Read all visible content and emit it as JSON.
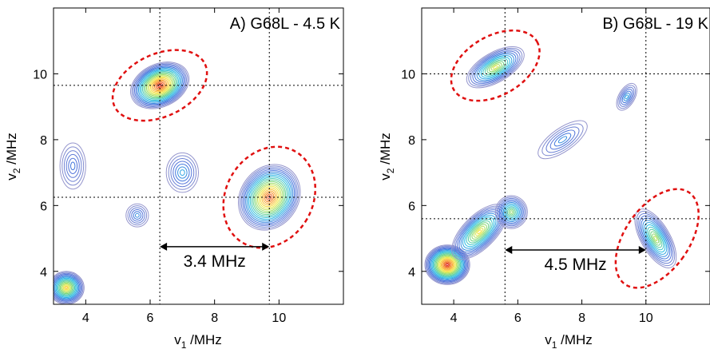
{
  "chart_data": [
    {
      "type": "contour",
      "title": "A) G68L - 4.5 K",
      "xlabel_base": "v",
      "xlabel_sub": "1",
      "xlabel_unit": " /MHz",
      "ylabel_base": "v",
      "ylabel_sub": "2",
      "ylabel_unit": " /MHz",
      "xlim": [
        3,
        12
      ],
      "ylim": [
        3,
        12
      ],
      "xticks": [
        4,
        6,
        8,
        10
      ],
      "yticks": [
        4,
        6,
        8,
        10
      ],
      "guide_x": [
        6.3,
        9.7
      ],
      "guide_y": [
        9.65,
        6.25
      ],
      "annotation": {
        "text": "3.4 MHz",
        "x_from": 6.3,
        "x_to": 9.7,
        "y": 4.75
      },
      "peaks": [
        {
          "x": 6.3,
          "y": 9.65,
          "sx": 0.95,
          "sy": 0.65,
          "rot": -25,
          "amp": 1.0
        },
        {
          "x": 9.7,
          "y": 6.25,
          "sx": 0.9,
          "sy": 1.05,
          "rot": 35,
          "amp": 0.95
        },
        {
          "x": 3.4,
          "y": 3.5,
          "sx": 0.55,
          "sy": 0.5,
          "rot": 0,
          "amp": 0.75
        },
        {
          "x": 7.0,
          "y": 7.0,
          "sx": 0.5,
          "sy": 0.6,
          "rot": 0,
          "amp": 0.3
        },
        {
          "x": 5.6,
          "y": 5.7,
          "sx": 0.35,
          "sy": 0.35,
          "rot": 0,
          "amp": 0.25
        },
        {
          "x": 3.6,
          "y": 7.2,
          "sx": 0.4,
          "sy": 0.7,
          "rot": 0,
          "amp": 0.2
        }
      ],
      "highlights": [
        {
          "x": 6.3,
          "y": 9.65,
          "rx": 1.55,
          "ry": 0.95,
          "rot": -25
        },
        {
          "x": 9.7,
          "y": 6.25,
          "rx": 1.35,
          "ry": 1.6,
          "rot": 30
        }
      ]
    },
    {
      "type": "contour",
      "title": "B) G68L - 19 K",
      "xlabel_base": "v",
      "xlabel_sub": "1",
      "xlabel_unit": " /MHz",
      "ylabel_base": "v",
      "ylabel_sub": "2",
      "ylabel_unit": " /MHz",
      "xlim": [
        3,
        12
      ],
      "ylim": [
        3,
        12
      ],
      "xticks": [
        4,
        6,
        8,
        10
      ],
      "yticks": [
        4,
        6,
        8,
        10
      ],
      "guide_x": [
        5.6,
        10.0
      ],
      "guide_y": [
        10.0,
        5.6
      ],
      "annotation": {
        "text": "4.5 MHz",
        "x_from": 5.6,
        "x_to": 10.0,
        "y": 4.65
      },
      "peaks": [
        {
          "x": 5.3,
          "y": 10.2,
          "sx": 1.0,
          "sy": 0.45,
          "rot": -30,
          "amp": 0.65
        },
        {
          "x": 10.3,
          "y": 5.0,
          "sx": 0.45,
          "sy": 1.0,
          "rot": -30,
          "amp": 0.6
        },
        {
          "x": 3.8,
          "y": 4.2,
          "sx": 0.7,
          "sy": 0.6,
          "rot": 0,
          "amp": 1.0
        },
        {
          "x": 4.8,
          "y": 5.2,
          "sx": 1.1,
          "sy": 0.5,
          "rot": -45,
          "amp": 0.7
        },
        {
          "x": 5.8,
          "y": 5.8,
          "sx": 0.5,
          "sy": 0.5,
          "rot": 0,
          "amp": 0.55
        },
        {
          "x": 9.4,
          "y": 9.3,
          "sx": 0.25,
          "sy": 0.45,
          "rot": 30,
          "amp": 0.3
        },
        {
          "x": 7.4,
          "y": 8.0,
          "sx": 0.9,
          "sy": 0.35,
          "rot": -35,
          "amp": 0.25
        }
      ],
      "highlights": [
        {
          "x": 5.3,
          "y": 10.25,
          "rx": 1.5,
          "ry": 0.9,
          "rot": -30
        },
        {
          "x": 10.35,
          "y": 5.0,
          "rx": 1.0,
          "ry": 1.7,
          "rot": 35
        }
      ]
    }
  ]
}
